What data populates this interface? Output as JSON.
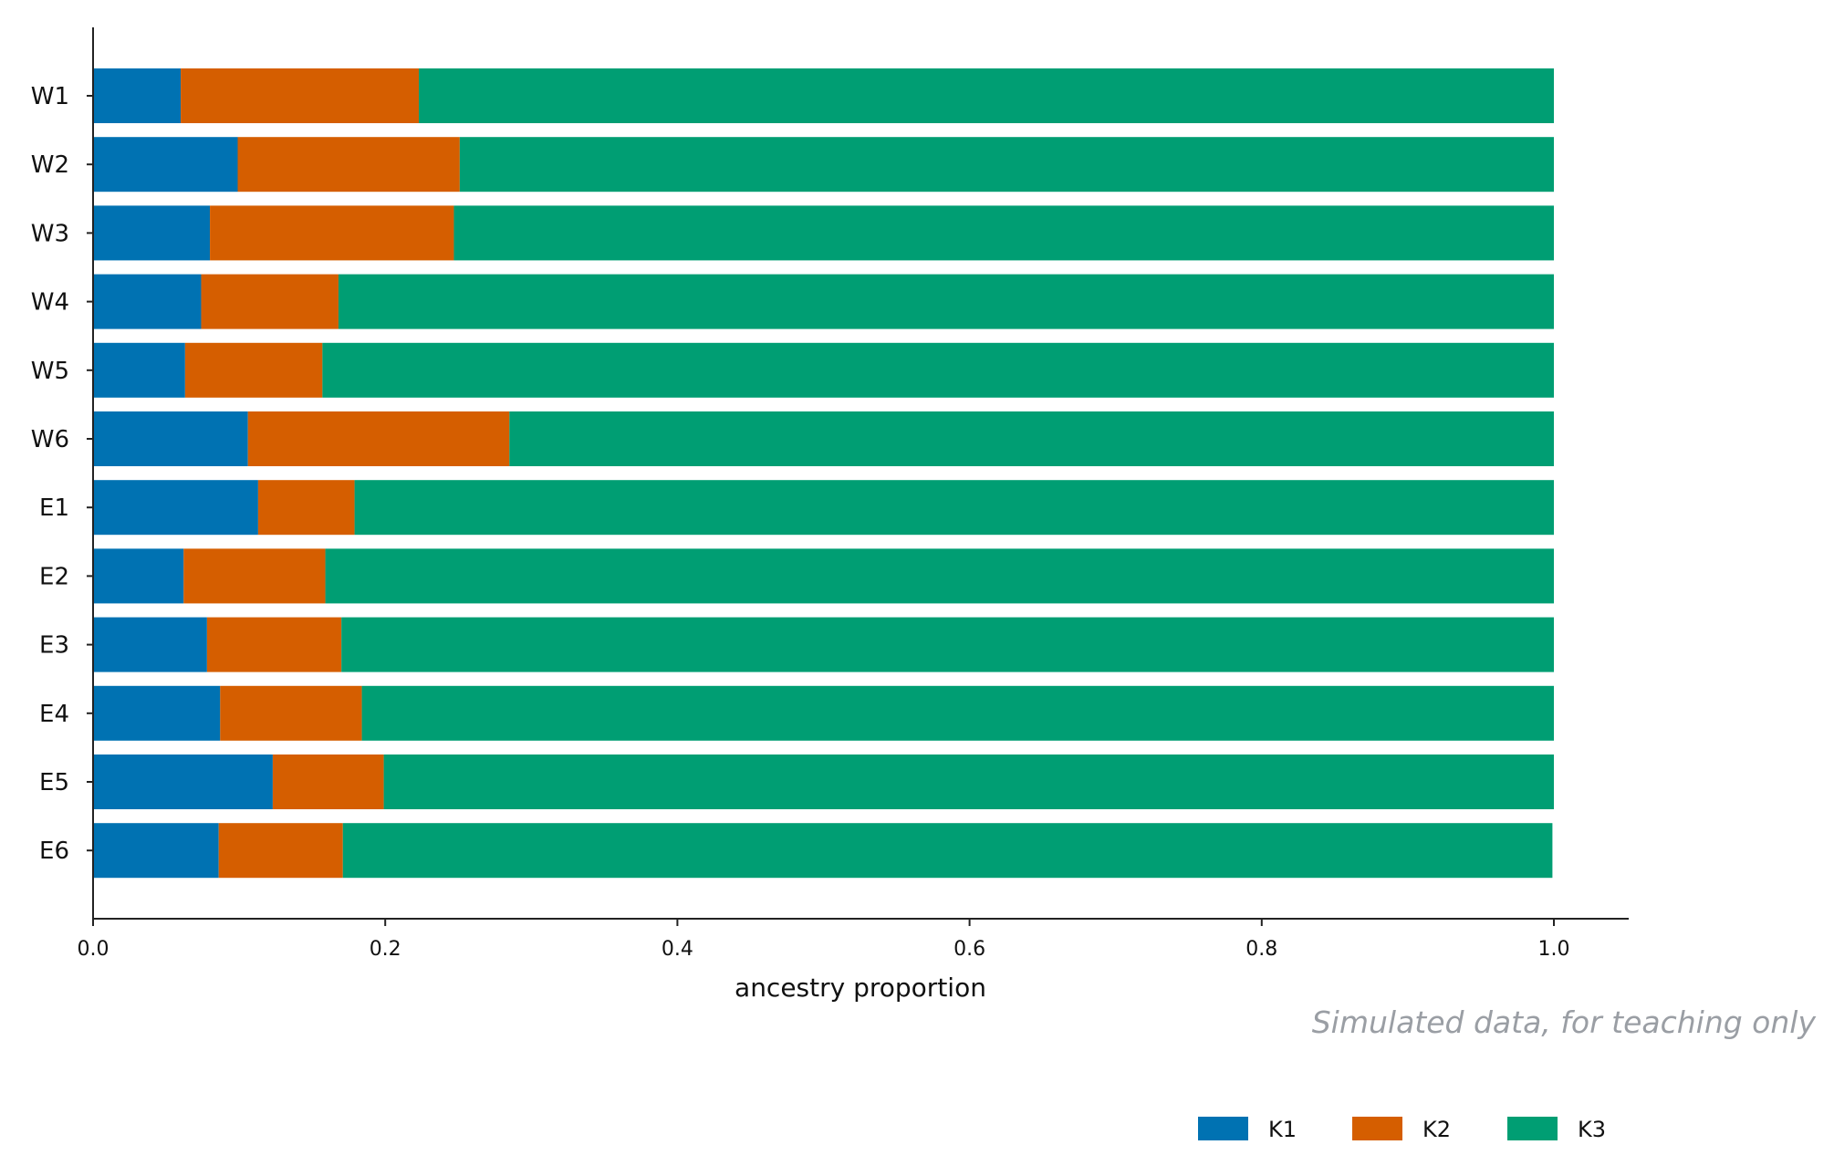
{
  "chart_data": {
    "type": "bar",
    "orientation": "horizontal",
    "stacked": true,
    "categories": [
      "W1",
      "W2",
      "W3",
      "W4",
      "W5",
      "W6",
      "E1",
      "E2",
      "E3",
      "E4",
      "E5",
      "E6"
    ],
    "series": [
      {
        "name": "K1",
        "color": "#0072b2",
        "values": [
          0.06,
          0.099,
          0.08,
          0.074,
          0.063,
          0.106,
          0.113,
          0.062,
          0.078,
          0.087,
          0.123,
          0.086
        ]
      },
      {
        "name": "K2",
        "color": "#d55e00",
        "values": [
          0.163,
          0.152,
          0.167,
          0.094,
          0.094,
          0.179,
          0.066,
          0.097,
          0.092,
          0.097,
          0.076,
          0.085
        ]
      },
      {
        "name": "K3",
        "color": "#009e73",
        "values": [
          0.777,
          0.749,
          0.753,
          0.832,
          0.843,
          0.715,
          0.821,
          0.841,
          0.83,
          0.816,
          0.801,
          0.828
        ]
      }
    ],
    "xlabel": "ancestry proportion",
    "ylabel": "",
    "xlim": [
      0,
      1.05
    ],
    "xticks": [
      "0.0",
      "0.2",
      "0.4",
      "0.6",
      "0.8",
      "1.0"
    ],
    "grid": false,
    "legend_position": "bottom-right"
  },
  "annotation": "Simulated data, for teaching only"
}
